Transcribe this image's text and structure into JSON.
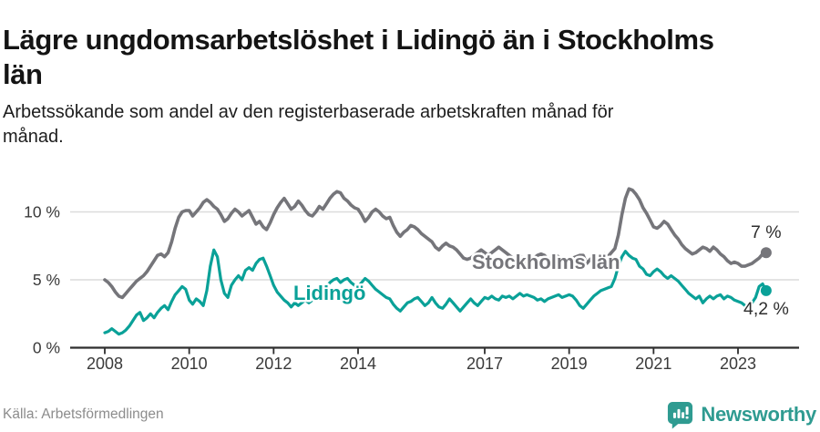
{
  "header": {
    "title_line1": "Lägre ungdomsarbetslöshet i Lidingö än i Stockholms",
    "title_line2": "län",
    "subtitle_line1": "Arbetssökande som andel av den registerbaserade arbetskraften månad för",
    "subtitle_line2": "månad."
  },
  "chart_data": {
    "type": "line",
    "x_unit": "month",
    "x_start": "2008-01",
    "x_end": "2023-09",
    "grid": "horizontal",
    "legend_position": "inline-labels",
    "ylim": [
      0,
      12
    ],
    "x_tick_years": [
      2008,
      2010,
      2012,
      2014,
      2017,
      2019,
      2021,
      2023
    ],
    "y_ticks": [
      {
        "value": 0,
        "label": "0 %"
      },
      {
        "value": 5,
        "label": "5 %"
      },
      {
        "value": 10,
        "label": "10 %"
      }
    ],
    "series": [
      {
        "name": "Stockholms län",
        "color": "#75757a",
        "end_value": 7.0,
        "end_label": "7 %",
        "values": [
          5.0,
          4.8,
          4.5,
          4.1,
          3.8,
          3.7,
          4.0,
          4.3,
          4.6,
          4.9,
          5.1,
          5.3,
          5.6,
          6.0,
          6.4,
          6.8,
          6.9,
          6.7,
          7.0,
          7.8,
          8.8,
          9.6,
          10.0,
          10.1,
          10.1,
          9.7,
          10.0,
          10.3,
          10.7,
          10.9,
          10.7,
          10.4,
          10.2,
          9.8,
          9.3,
          9.5,
          9.9,
          10.2,
          10.0,
          9.7,
          9.9,
          10.1,
          9.6,
          9.1,
          9.3,
          8.9,
          8.7,
          9.2,
          9.8,
          10.3,
          10.7,
          11.0,
          10.6,
          10.2,
          10.4,
          10.8,
          10.5,
          10.1,
          9.8,
          9.7,
          10.0,
          10.4,
          10.2,
          10.6,
          11.0,
          11.3,
          11.5,
          11.4,
          11.0,
          10.8,
          10.5,
          10.3,
          10.2,
          9.8,
          9.3,
          9.6,
          10.0,
          10.2,
          10.0,
          9.7,
          9.5,
          9.6,
          9.0,
          8.5,
          8.2,
          8.5,
          8.7,
          9.0,
          8.9,
          8.7,
          8.4,
          8.2,
          8.0,
          7.8,
          7.4,
          7.2,
          7.5,
          7.7,
          7.5,
          7.4,
          7.2,
          6.9,
          6.6,
          6.5,
          6.6,
          6.8,
          7.0,
          7.2,
          7.0,
          6.8,
          7.0,
          7.2,
          7.4,
          7.2,
          7.0,
          6.8,
          6.6,
          6.5,
          6.7,
          6.6,
          6.3,
          6.4,
          6.6,
          6.8,
          6.9,
          6.8,
          6.5,
          6.6,
          6.8,
          6.7,
          6.5,
          6.6,
          6.5,
          6.6,
          6.7,
          6.8,
          6.8,
          6.2,
          6.5,
          6.7,
          6.6,
          6.7,
          6.9,
          6.7,
          7.0,
          7.3,
          8.3,
          9.8,
          11.0,
          11.7,
          11.6,
          11.3,
          10.9,
          10.3,
          9.9,
          9.4,
          8.9,
          8.8,
          9.0,
          9.3,
          9.1,
          8.7,
          8.3,
          8.0,
          7.6,
          7.3,
          7.1,
          6.9,
          7.0,
          7.2,
          7.4,
          7.3,
          7.1,
          7.4,
          7.2,
          6.9,
          6.7,
          6.4,
          6.2,
          6.3,
          6.2,
          6.0,
          6.0,
          6.1,
          6.2,
          6.4,
          6.6,
          6.9,
          7.0
        ]
      },
      {
        "name": "Lidingö",
        "color": "#0aa198",
        "end_value": 4.2,
        "end_label": "4,2 %",
        "values": [
          1.1,
          1.2,
          1.4,
          1.2,
          1.0,
          1.1,
          1.3,
          1.6,
          2.0,
          2.4,
          2.6,
          2.0,
          2.2,
          2.5,
          2.2,
          2.6,
          2.9,
          3.1,
          2.8,
          3.4,
          3.9,
          4.2,
          4.5,
          4.3,
          3.5,
          3.2,
          3.6,
          3.4,
          3.1,
          4.2,
          6.0,
          7.2,
          6.7,
          5.0,
          4.0,
          3.7,
          4.6,
          5.0,
          5.3,
          5.0,
          5.7,
          5.9,
          5.7,
          6.2,
          6.5,
          6.6,
          6.0,
          5.3,
          4.6,
          4.1,
          3.8,
          3.5,
          3.3,
          3.0,
          3.3,
          3.1,
          3.3,
          3.5,
          3.3,
          3.5,
          3.6,
          3.9,
          4.2,
          4.5,
          4.8,
          5.0,
          5.1,
          4.8,
          5.0,
          5.1,
          4.8,
          4.6,
          4.5,
          4.8,
          5.1,
          4.9,
          4.6,
          4.3,
          4.1,
          3.9,
          3.7,
          3.6,
          3.2,
          2.9,
          2.7,
          3.0,
          3.3,
          3.4,
          3.6,
          3.7,
          3.4,
          3.1,
          3.3,
          3.7,
          3.3,
          3.0,
          2.9,
          3.2,
          3.6,
          3.3,
          3.0,
          2.7,
          3.0,
          3.3,
          3.6,
          3.3,
          3.1,
          3.4,
          3.7,
          3.6,
          3.8,
          3.6,
          3.5,
          3.8,
          3.7,
          3.8,
          3.6,
          3.8,
          4.0,
          3.8,
          3.9,
          3.8,
          3.7,
          3.5,
          3.6,
          3.4,
          3.6,
          3.7,
          3.8,
          3.9,
          3.7,
          3.8,
          3.9,
          3.8,
          3.5,
          3.1,
          2.9,
          3.2,
          3.5,
          3.8,
          4.0,
          4.2,
          4.3,
          4.4,
          4.5,
          5.1,
          6.0,
          6.7,
          7.1,
          6.8,
          6.6,
          6.5,
          6.0,
          5.8,
          5.4,
          5.3,
          5.6,
          5.8,
          5.6,
          5.3,
          5.1,
          5.3,
          5.1,
          4.9,
          4.6,
          4.3,
          4.0,
          3.8,
          3.6,
          3.8,
          3.3,
          3.6,
          3.8,
          3.6,
          3.8,
          3.9,
          3.6,
          3.8,
          3.7,
          3.5,
          3.4,
          3.3,
          3.1,
          3.0,
          3.3,
          3.7,
          4.5,
          4.7,
          4.2
        ]
      }
    ],
    "series_labels": [
      {
        "text": "Stockholms län",
        "x": 518,
        "y": 295,
        "color": "#75757a"
      },
      {
        "text": "Lidingö",
        "x": 322,
        "y": 329,
        "color": "#0aa198"
      }
    ],
    "end_labels": [
      {
        "text": "7 %",
        "x": 824,
        "y": 261,
        "color": "#2e2e2e"
      },
      {
        "text": "4,2 %",
        "x": 816,
        "y": 345,
        "color": "#2e2e2e"
      }
    ]
  },
  "colors": {
    "stockholm_line": "#75757a",
    "lidingo_line": "#0aa198",
    "grid": "#dcdcdc",
    "axis": "#2e2e2e",
    "tick_label": "#3a3a3a",
    "brand_teal": "#2f9b91"
  },
  "footer": {
    "source": "Källa: Arbetsförmedlingen",
    "brand": "Newsworthy"
  }
}
